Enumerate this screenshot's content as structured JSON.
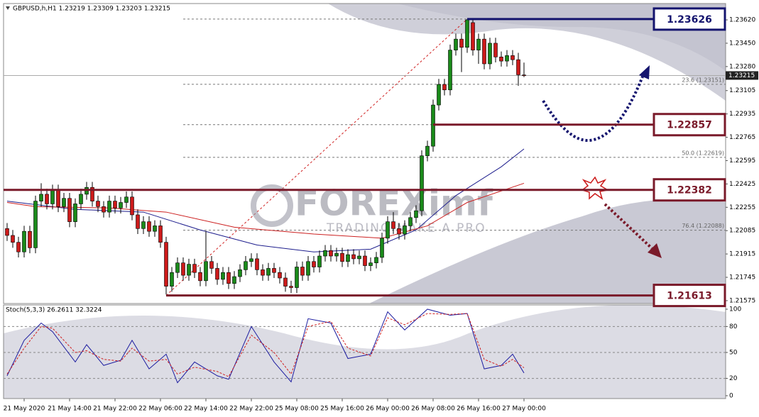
{
  "chart_data": [
    {
      "type": "candlestick",
      "title": "GBPUSD,h,H1  1.23219 1.23309 1.23203 1.23215",
      "xlim": [
        -0.625,
        126.5
      ],
      "ylim": [
        1.21554,
        1.23739
      ],
      "yticks": [
        {
          "value": 1.2362,
          "label": "1.23620"
        },
        {
          "value": 1.2345,
          "label": "1.23450"
        },
        {
          "value": 1.2328,
          "label": "1.23280"
        },
        {
          "value": 1.23105,
          "label": "1.23105"
        },
        {
          "value": 1.22935,
          "label": "1.22935"
        },
        {
          "value": 1.22765,
          "label": "1.22765"
        },
        {
          "value": 1.22595,
          "label": "1.22595"
        },
        {
          "value": 1.22425,
          "label": "1.22425"
        },
        {
          "value": 1.22255,
          "label": "1.22255"
        },
        {
          "value": 1.22085,
          "label": "1.22085"
        },
        {
          "value": 1.21915,
          "label": "1.21915"
        },
        {
          "value": 1.21745,
          "label": "1.21745"
        },
        {
          "value": 1.21575,
          "label": "1.21575"
        }
      ],
      "xticks": [
        {
          "value": 3,
          "label": "21 May 2020"
        },
        {
          "value": 11,
          "label": "21 May 14:00"
        },
        {
          "value": 19,
          "label": "21 May 22:00"
        },
        {
          "value": 27,
          "label": "22 May 06:00"
        },
        {
          "value": 35,
          "label": "22 May 14:00"
        },
        {
          "value": 43,
          "label": "22 May 22:00"
        },
        {
          "value": 51,
          "label": "25 May 08:00"
        },
        {
          "value": 59,
          "label": "25 May 16:00"
        },
        {
          "value": 67,
          "label": "26 May 00:00"
        },
        {
          "value": 75,
          "label": "26 May 08:00"
        },
        {
          "value": 83,
          "label": "26 May 16:00"
        },
        {
          "value": 91,
          "label": "27 May 00:00"
        }
      ],
      "bull_color": "#1a8a1a",
      "bear_color": "#cc1a1a",
      "candles": [
        [
          1.221,
          1.2214,
          1.2201,
          1.2205
        ],
        [
          1.2205,
          1.2209,
          1.2196,
          1.22
        ],
        [
          1.22,
          1.2204,
          1.2189,
          1.2193
        ],
        [
          1.2193,
          1.2212,
          1.2189,
          1.2208
        ],
        [
          1.2208,
          1.2212,
          1.2192,
          1.2196
        ],
        [
          1.2196,
          1.2234,
          1.2192,
          1.223
        ],
        [
          1.223,
          1.2243,
          1.2226,
          1.2235
        ],
        [
          1.2235,
          1.2239,
          1.2224,
          1.2228
        ],
        [
          1.2228,
          1.2242,
          1.2224,
          1.2238
        ],
        [
          1.2238,
          1.2242,
          1.2222,
          1.2226
        ],
        [
          1.2226,
          1.2236,
          1.2222,
          1.2232
        ],
        [
          1.2232,
          1.2236,
          1.2211,
          1.2215
        ],
        [
          1.2215,
          1.2232,
          1.2211,
          1.2228
        ],
        [
          1.2228,
          1.2239,
          1.2224,
          1.2235
        ],
        [
          1.2235,
          1.2244,
          1.2231,
          1.224
        ],
        [
          1.224,
          1.2244,
          1.2226,
          1.223
        ],
        [
          1.223,
          1.2234,
          1.2222,
          1.2226
        ],
        [
          1.2226,
          1.223,
          1.2218,
          1.2222
        ],
        [
          1.2222,
          1.2234,
          1.2218,
          1.223
        ],
        [
          1.223,
          1.2234,
          1.2221,
          1.2225
        ],
        [
          1.2225,
          1.2233,
          1.2221,
          1.2229
        ],
        [
          1.2229,
          1.2237,
          1.2225,
          1.2233
        ],
        [
          1.2233,
          1.2237,
          1.2216,
          1.222
        ],
        [
          1.222,
          1.2224,
          1.2206,
          1.221
        ],
        [
          1.221,
          1.2219,
          1.2206,
          1.2215
        ],
        [
          1.2215,
          1.2219,
          1.2204,
          1.2208
        ],
        [
          1.2208,
          1.2216,
          1.2204,
          1.2212
        ],
        [
          1.2212,
          1.2216,
          1.2196,
          1.22
        ],
        [
          1.22,
          1.2204,
          1.2162,
          1.2168
        ],
        [
          1.2168,
          1.2182,
          1.2164,
          1.2178
        ],
        [
          1.2178,
          1.2189,
          1.2174,
          1.2185
        ],
        [
          1.2185,
          1.2189,
          1.2172,
          1.2176
        ],
        [
          1.2176,
          1.2188,
          1.2172,
          1.2184
        ],
        [
          1.2184,
          1.2188,
          1.2174,
          1.2178
        ],
        [
          1.2178,
          1.2182,
          1.2168,
          1.2172
        ],
        [
          1.2172,
          1.2208,
          1.2168,
          1.2186
        ],
        [
          1.2186,
          1.219,
          1.2177,
          1.2181
        ],
        [
          1.2181,
          1.2185,
          1.2169,
          1.2173
        ],
        [
          1.2173,
          1.2182,
          1.2169,
          1.2178
        ],
        [
          1.2178,
          1.2182,
          1.2166,
          1.217
        ],
        [
          1.217,
          1.2179,
          1.2166,
          1.2175
        ],
        [
          1.2175,
          1.2184,
          1.2171,
          1.218
        ],
        [
          1.218,
          1.219,
          1.2176,
          1.2186
        ],
        [
          1.2186,
          1.2192,
          1.2182,
          1.2188
        ],
        [
          1.2188,
          1.2192,
          1.2176,
          1.218
        ],
        [
          1.218,
          1.2184,
          1.2172,
          1.2176
        ],
        [
          1.2176,
          1.2185,
          1.2172,
          1.2181
        ],
        [
          1.2181,
          1.2185,
          1.2174,
          1.2178
        ],
        [
          1.2178,
          1.2182,
          1.217,
          1.2174
        ],
        [
          1.2174,
          1.2178,
          1.2164,
          1.2168
        ],
        [
          1.2168,
          1.2172,
          1.2163,
          1.2167
        ],
        [
          1.2167,
          1.2186,
          1.2163,
          1.2182
        ],
        [
          1.2182,
          1.2186,
          1.2172,
          1.2176
        ],
        [
          1.2176,
          1.219,
          1.2172,
          1.2186
        ],
        [
          1.2186,
          1.219,
          1.2178,
          1.2182
        ],
        [
          1.2182,
          1.2194,
          1.2178,
          1.219
        ],
        [
          1.219,
          1.2198,
          1.2186,
          1.2194
        ],
        [
          1.2194,
          1.2198,
          1.2186,
          1.219
        ],
        [
          1.219,
          1.2196,
          1.2186,
          1.2192
        ],
        [
          1.2192,
          1.2196,
          1.2182,
          1.2186
        ],
        [
          1.2186,
          1.2195,
          1.2182,
          1.2191
        ],
        [
          1.2191,
          1.2195,
          1.2184,
          1.2188
        ],
        [
          1.2188,
          1.2194,
          1.2184,
          1.219
        ],
        [
          1.219,
          1.2194,
          1.2179,
          1.2183
        ],
        [
          1.2183,
          1.2189,
          1.2179,
          1.2185
        ],
        [
          1.2185,
          1.2193,
          1.2181,
          1.2189
        ],
        [
          1.2189,
          1.2207,
          1.2185,
          1.2203
        ],
        [
          1.2203,
          1.2219,
          1.2199,
          1.2215
        ],
        [
          1.2215,
          1.2222,
          1.2206,
          1.221
        ],
        [
          1.221,
          1.2214,
          1.2202,
          1.2206
        ],
        [
          1.2206,
          1.2216,
          1.2202,
          1.2212
        ],
        [
          1.2212,
          1.2222,
          1.2208,
          1.2218
        ],
        [
          1.2218,
          1.2227,
          1.2214,
          1.2223
        ],
        [
          1.2223,
          1.2267,
          1.2219,
          1.2263
        ],
        [
          1.2263,
          1.2274,
          1.2259,
          1.227
        ],
        [
          1.227,
          1.2304,
          1.2266,
          1.23
        ],
        [
          1.23,
          1.2319,
          1.2296,
          1.2315
        ],
        [
          1.2315,
          1.2319,
          1.2307,
          1.2311
        ],
        [
          1.2311,
          1.2344,
          1.2307,
          1.234
        ],
        [
          1.234,
          1.2352,
          1.2336,
          1.2348
        ],
        [
          1.2348,
          1.2352,
          1.2324,
          1.2342
        ],
        [
          1.2342,
          1.23626,
          1.2338,
          1.2362
        ],
        [
          1.236,
          1.2362,
          1.2336,
          1.234
        ],
        [
          1.234,
          1.2352,
          1.233,
          1.2348
        ],
        [
          1.2348,
          1.2352,
          1.2326,
          1.233
        ],
        [
          1.233,
          1.2349,
          1.2326,
          1.2345
        ],
        [
          1.2345,
          1.2349,
          1.2331,
          1.2335
        ],
        [
          1.2335,
          1.2339,
          1.2328,
          1.2332
        ],
        [
          1.2332,
          1.234,
          1.2328,
          1.2336
        ],
        [
          1.2336,
          1.234,
          1.2329,
          1.2333
        ],
        [
          1.2333,
          1.2338,
          1.2314,
          1.2322
        ],
        [
          1.23219,
          1.23309,
          1.23203,
          1.23215
        ]
      ],
      "series": [
        {
          "color": "#1c1c8c",
          "x": [
            0,
            12,
            24,
            34,
            44,
            54,
            64,
            72,
            79,
            87,
            91
          ],
          "values": [
            1.223,
            1.2224,
            1.2222,
            1.2209,
            1.2198,
            1.2193,
            1.2195,
            1.2209,
            1.2234,
            1.2255,
            1.2268
          ]
        },
        {
          "color": "#cc2020",
          "x": [
            0,
            5,
            18,
            28,
            40,
            54,
            66,
            74,
            81,
            91
          ],
          "values": [
            1.2229,
            1.2226,
            1.2225,
            1.2222,
            1.2211,
            1.2206,
            1.2203,
            1.2212,
            1.2229,
            1.2243
          ]
        }
      ],
      "current_price": 1.23215,
      "levels": [
        {
          "value": 1.23626,
          "color": "#14146e"
        },
        {
          "value": 1.22857,
          "color": "#7a1a2a"
        },
        {
          "value": 1.22382,
          "color": "#7a1a2a"
        },
        {
          "value": 1.21613,
          "color": "#7a1a2a"
        }
      ],
      "fib": [
        {
          "value": 1.23151,
          "label": "23.6 (1.23151)"
        },
        {
          "value": 1.22619,
          "label": "50.0 (1.22619)"
        },
        {
          "value": 1.22088,
          "label": "76.4 (1.22088)"
        }
      ]
    },
    {
      "type": "line",
      "title": "Stoch(5,3,3) 26.2611 32.3224",
      "xlim": [
        -0.625,
        126.5
      ],
      "ylim": [
        -3.3,
        104.9
      ],
      "yticks": [
        100,
        80,
        50,
        20,
        0
      ],
      "grid": true,
      "series": [
        {
          "color": "#1c1ca0",
          "x": [
            0,
            3,
            6,
            8,
            12,
            14,
            17,
            20,
            22,
            25,
            28,
            30,
            33,
            37,
            39,
            43,
            47,
            50,
            53,
            57,
            60,
            64,
            67,
            70,
            74,
            78,
            81,
            84,
            87,
            89,
            91
          ],
          "values": [
            23,
            64,
            84,
            74,
            39,
            59,
            35,
            41,
            64,
            31,
            48,
            15,
            39,
            23,
            19,
            80,
            39,
            16,
            89,
            84,
            43,
            48,
            97,
            76,
            100,
            93,
            95,
            31,
            35,
            48,
            26.2611
          ]
        },
        {
          "color": "#d02020",
          "x": [
            0,
            3,
            6,
            8,
            12,
            14,
            17,
            20,
            22,
            25,
            28,
            30,
            33,
            37,
            39,
            43,
            47,
            50,
            53,
            57,
            60,
            64,
            67,
            70,
            74,
            78,
            81,
            84,
            87,
            89,
            91
          ],
          "values": [
            25,
            55,
            80,
            78,
            50,
            52,
            42,
            40,
            55,
            40,
            42,
            25,
            33,
            28,
            22,
            70,
            50,
            25,
            80,
            86,
            55,
            46,
            90,
            82,
            95,
            94,
            95,
            42,
            34,
            42,
            32.3224
          ]
        }
      ]
    }
  ],
  "watermark": {
    "brand": "FOREXimf",
    "slogan": "TRADING MAKE A PRO"
  }
}
